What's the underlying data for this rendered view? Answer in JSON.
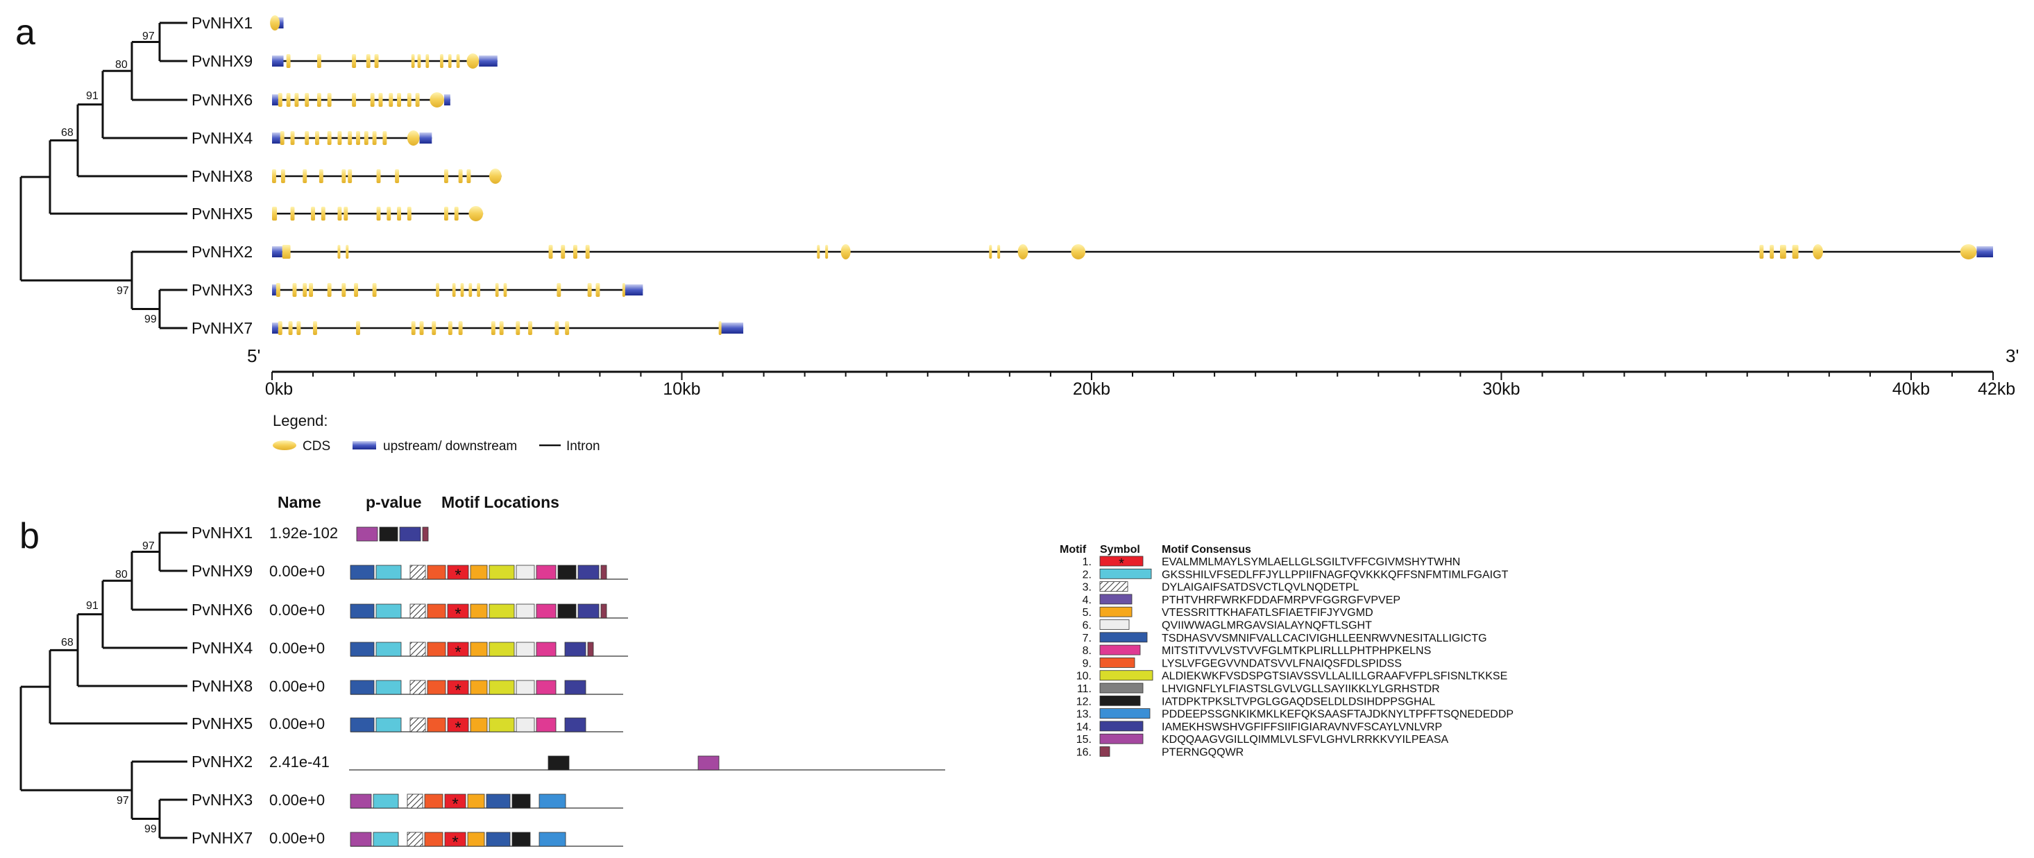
{
  "panel_a": {
    "label": "a",
    "genes": [
      {
        "name": "PvNHX1",
        "length_kb": 0.28,
        "utr": [
          [
            0.12,
            0.28
          ]
        ],
        "cds": [
          [
            0.0,
            0.14,
            "oval"
          ]
        ]
      },
      {
        "name": "PvNHX9",
        "length_kb": 5.5,
        "utr": [
          [
            0.0,
            0.28
          ],
          [
            5.05,
            5.5
          ]
        ],
        "cds": [
          [
            0.35,
            0.45
          ],
          [
            1.1,
            1.2
          ],
          [
            1.95,
            2.05
          ],
          [
            2.3,
            2.4
          ],
          [
            2.5,
            2.6
          ],
          [
            3.4,
            3.48
          ],
          [
            3.55,
            3.63
          ],
          [
            3.75,
            3.83
          ],
          [
            4.1,
            4.18
          ],
          [
            4.3,
            4.38
          ],
          [
            4.5,
            4.58
          ],
          [
            4.75,
            5.05,
            "oval"
          ]
        ]
      },
      {
        "name": "PvNHX6",
        "length_kb": 4.35,
        "utr": [
          [
            0.0,
            0.15
          ],
          [
            4.2,
            4.35
          ]
        ],
        "cds": [
          [
            0.15,
            0.25
          ],
          [
            0.35,
            0.45
          ],
          [
            0.55,
            0.65
          ],
          [
            0.8,
            0.9
          ],
          [
            1.1,
            1.2
          ],
          [
            1.35,
            1.45
          ],
          [
            1.95,
            2.05
          ],
          [
            2.4,
            2.5
          ],
          [
            2.6,
            2.7
          ],
          [
            2.85,
            2.95
          ],
          [
            3.05,
            3.15
          ],
          [
            3.3,
            3.4
          ],
          [
            3.5,
            3.6
          ],
          [
            3.85,
            4.2,
            "oval"
          ]
        ]
      },
      {
        "name": "PvNHX4",
        "length_kb": 3.9,
        "utr": [
          [
            0.0,
            0.2
          ],
          [
            3.6,
            3.9
          ]
        ],
        "cds": [
          [
            0.2,
            0.3
          ],
          [
            0.45,
            0.55
          ],
          [
            0.8,
            0.9
          ],
          [
            1.05,
            1.15
          ],
          [
            1.35,
            1.45
          ],
          [
            1.6,
            1.7
          ],
          [
            1.85,
            1.95
          ],
          [
            2.05,
            2.15
          ],
          [
            2.25,
            2.35
          ],
          [
            2.45,
            2.55
          ],
          [
            2.7,
            2.8
          ],
          [
            3.3,
            3.6,
            "oval"
          ]
        ]
      },
      {
        "name": "PvNHX8",
        "length_kb": 5.6,
        "utr": [],
        "cds": [
          [
            0.0,
            0.1
          ],
          [
            0.22,
            0.32
          ],
          [
            0.75,
            0.85
          ],
          [
            1.15,
            1.25
          ],
          [
            1.7,
            1.8
          ],
          [
            1.85,
            1.95
          ],
          [
            2.55,
            2.65
          ],
          [
            3.0,
            3.1
          ],
          [
            4.2,
            4.3
          ],
          [
            4.55,
            4.65
          ],
          [
            4.75,
            4.85
          ],
          [
            5.3,
            5.6,
            "oval"
          ]
        ]
      },
      {
        "name": "PvNHX5",
        "length_kb": 5.15,
        "utr": [],
        "cds": [
          [
            0.0,
            0.12
          ],
          [
            0.45,
            0.55
          ],
          [
            0.95,
            1.05
          ],
          [
            1.2,
            1.3
          ],
          [
            1.6,
            1.7
          ],
          [
            1.75,
            1.85
          ],
          [
            2.55,
            2.65
          ],
          [
            2.8,
            2.9
          ],
          [
            3.05,
            3.15
          ],
          [
            3.3,
            3.4
          ],
          [
            4.2,
            4.3
          ],
          [
            4.45,
            4.55
          ],
          [
            4.8,
            5.15,
            "oval"
          ]
        ]
      },
      {
        "name": "PvNHX2",
        "length_kb": 42.0,
        "utr": [
          [
            0.0,
            0.25
          ],
          [
            41.6,
            42.0
          ]
        ],
        "cds": [
          [
            0.25,
            0.45
          ],
          [
            1.6,
            1.65
          ],
          [
            1.8,
            1.85
          ],
          [
            6.75,
            6.85
          ],
          [
            7.05,
            7.15
          ],
          [
            7.35,
            7.45
          ],
          [
            7.65,
            7.75
          ],
          [
            13.3,
            13.35
          ],
          [
            13.5,
            13.55
          ],
          [
            13.9,
            14.1,
            "oval"
          ],
          [
            17.5,
            17.55
          ],
          [
            17.7,
            17.75
          ],
          [
            18.2,
            18.45,
            "oval"
          ],
          [
            19.5,
            19.85,
            "oval"
          ],
          [
            36.3,
            36.4
          ],
          [
            36.55,
            36.65
          ],
          [
            36.8,
            36.95
          ],
          [
            37.1,
            37.25
          ],
          [
            37.6,
            37.85,
            "oval"
          ],
          [
            41.2,
            41.6,
            "oval"
          ]
        ]
      },
      {
        "name": "PvNHX3",
        "length_kb": 9.05,
        "utr": [
          [
            0.0,
            0.1
          ],
          [
            8.6,
            9.05
          ]
        ],
        "cds": [
          [
            0.1,
            0.2
          ],
          [
            0.5,
            0.6
          ],
          [
            0.75,
            0.85
          ],
          [
            0.9,
            1.0
          ],
          [
            1.35,
            1.45
          ],
          [
            1.7,
            1.8
          ],
          [
            2.0,
            2.1
          ],
          [
            2.45,
            2.55
          ],
          [
            4.0,
            4.08
          ],
          [
            4.4,
            4.48
          ],
          [
            4.6,
            4.68
          ],
          [
            4.8,
            4.88
          ],
          [
            5.0,
            5.08
          ],
          [
            5.45,
            5.53
          ],
          [
            5.65,
            5.73
          ],
          [
            6.95,
            7.05
          ],
          [
            7.7,
            7.8
          ],
          [
            7.9,
            8.0
          ],
          [
            8.55,
            8.6
          ]
        ]
      },
      {
        "name": "PvNHX7",
        "length_kb": 11.5,
        "utr": [
          [
            0.0,
            0.15
          ],
          [
            10.95,
            11.5
          ]
        ],
        "cds": [
          [
            0.15,
            0.25
          ],
          [
            0.4,
            0.5
          ],
          [
            0.6,
            0.7
          ],
          [
            1.0,
            1.1
          ],
          [
            2.05,
            2.15
          ],
          [
            3.4,
            3.5
          ],
          [
            3.6,
            3.7
          ],
          [
            3.9,
            4.0
          ],
          [
            4.3,
            4.4
          ],
          [
            4.55,
            4.65
          ],
          [
            5.35,
            5.45
          ],
          [
            5.55,
            5.65
          ],
          [
            5.95,
            6.05
          ],
          [
            6.25,
            6.35
          ],
          [
            6.9,
            7.0
          ],
          [
            7.15,
            7.25
          ],
          [
            10.9,
            10.95
          ]
        ]
      }
    ],
    "bootstrap": {
      "n97": "97",
      "n80": "80",
      "n91": "91",
      "n68": "68",
      "n97b": "97",
      "n99": "99"
    },
    "axis": {
      "five_prime": "5'",
      "three_prime": "3'",
      "max_kb": 42,
      "labels": [
        {
          "kb": 0,
          "text": "0kb"
        },
        {
          "kb": 10,
          "text": "10kb"
        },
        {
          "kb": 20,
          "text": "20kb"
        },
        {
          "kb": 30,
          "text": "30kb"
        },
        {
          "kb": 40,
          "text": "40kb"
        },
        {
          "kb": 42,
          "text": "42kb"
        }
      ]
    },
    "legend": {
      "title": "Legend:",
      "cds": "CDS",
      "utr": "upstream/ downstream",
      "intron": "Intron"
    }
  },
  "panel_b": {
    "label": "b",
    "headers": {
      "name": "Name",
      "pvalue": "p-value",
      "locations": "Motif Locations"
    },
    "rows": [
      {
        "name": "PvNHX1",
        "pvalue": "1.92e-102",
        "motifs": [
          15,
          12,
          14,
          16
        ],
        "line_units": 0
      },
      {
        "name": "PvNHX9",
        "pvalue": "0.00e+0",
        "motifs": [
          7,
          2,
          0,
          3,
          9,
          1,
          5,
          10,
          6,
          8,
          12,
          14,
          16
        ],
        "line_units": 0
      },
      {
        "name": "PvNHX6",
        "pvalue": "0.00e+0",
        "motifs": [
          7,
          2,
          0,
          3,
          9,
          1,
          5,
          10,
          6,
          8,
          12,
          14,
          16
        ],
        "line_units": 0
      },
      {
        "name": "PvNHX4",
        "pvalue": "0.00e+0",
        "motifs": [
          7,
          2,
          0,
          3,
          9,
          1,
          5,
          10,
          6,
          8,
          0,
          14,
          16
        ],
        "line_units": 0
      },
      {
        "name": "PvNHX8",
        "pvalue": "0.00e+0",
        "motifs": [
          7,
          2,
          0,
          3,
          9,
          1,
          5,
          10,
          6,
          8,
          0,
          14
        ],
        "line_units": 0
      },
      {
        "name": "PvNHX5",
        "pvalue": "0.00e+0",
        "motifs": [
          7,
          2,
          0,
          3,
          9,
          1,
          5,
          10,
          6,
          8,
          0,
          14
        ],
        "line_units": 0
      },
      {
        "name": "PvNHX2",
        "pvalue": "2.41e-41",
        "motifs": [],
        "line_units": 1
      },
      {
        "name": "PvNHX3",
        "pvalue": "0.00e+0",
        "motifs": [
          15,
          2,
          0,
          3,
          9,
          1,
          5,
          7,
          12,
          0,
          13
        ],
        "line_units": 0
      },
      {
        "name": "PvNHX7",
        "pvalue": "0.00e+0",
        "motifs": [
          15,
          2,
          0,
          3,
          9,
          1,
          5,
          7,
          12,
          0,
          13
        ],
        "line_units": 0
      }
    ],
    "pvnhx2_motifs": [
      12,
      15
    ]
  },
  "motif_table": {
    "headers": {
      "motif": "Motif",
      "symbol": "Symbol",
      "consensus": "Motif Consensus"
    },
    "motifs": [
      {
        "num": "1.",
        "consensus": "EVALMMLMAYLSYMLAELLGLSGILTVFFCGIVMSHYTWHN",
        "color": "#e8202a",
        "star": true
      },
      {
        "num": "2.",
        "consensus": "GKSSHILVFSEDLFFJYLLPPIIFNAGFQVKKKQFFSNFMTIMLFGAIGT",
        "color": "#5bc8dc"
      },
      {
        "num": "3.",
        "consensus": "DYLAIGAIFSATDSVCTLQVLNQDETPL",
        "color": "hatch"
      },
      {
        "num": "4.",
        "consensus": "PTHTVHRFWRKFDDAFMRPVFGGRGFVPVEP",
        "color": "#6a52a4"
      },
      {
        "num": "5.",
        "consensus": "VTESSRITTKHAFATLSFIAETFIFJYVGMD",
        "color": "#f6a81c"
      },
      {
        "num": "6.",
        "consensus": "QVIIWWAGLMRGAVSIALAYNQFTLSGHT",
        "color": "#eeeeee"
      },
      {
        "num": "7.",
        "consensus": "TSDHASVVSMNIFVALLCACIVIGHLLEENRWVNESITALLIGICTG",
        "color": "#2f5aa6"
      },
      {
        "num": "8.",
        "consensus": "MITSTITVVLVSTVVFGLMTKPLIRLLLPHTPHPKELNS",
        "color": "#df3a93"
      },
      {
        "num": "9.",
        "consensus": "LYSLVFGEGVVNDATSVVLFNAIQSFDLSPIDSS",
        "color": "#f15a29"
      },
      {
        "num": "10.",
        "consensus": "ALDIEKWKFVSDSPGTSIAVSSVLLALILLGRAAFVFPLSFISNLTKKSE",
        "color": "#d9dc2a"
      },
      {
        "num": "11.",
        "consensus": "LHVIGNFLYLFIASTSLGVLVGLLSAYIIKKLYLGRHSTDR",
        "color": "#7f7f7f"
      },
      {
        "num": "12.",
        "consensus": "IATDPKTPKSLTVPGLGGAQDSELDLDSIHDPPSGHAL",
        "color": "#1c1c1c"
      },
      {
        "num": "13.",
        "consensus": "PDDEEPSSGNKIKMKLKEFQKSAASFTAJDKNYLTPFFTSQNEDEDDP",
        "color": "#3a8fd6"
      },
      {
        "num": "14.",
        "consensus": "IAMEKHSWSHVGFIFFSIIFIGIARAVNVFSCAYLVNLVRP",
        "color": "#3c3f98"
      },
      {
        "num": "15.",
        "consensus": "KDQQAAGVGILLQIMMLVLSFVLGHVLRRKKVYILPEASA",
        "color": "#a548a0"
      },
      {
        "num": "16.",
        "consensus": "PTERNGQQWR",
        "color": "#8a3a52"
      }
    ]
  }
}
